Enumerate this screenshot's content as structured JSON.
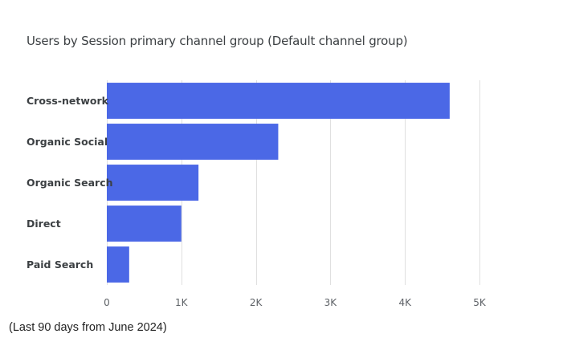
{
  "chart_data": {
    "type": "bar",
    "orientation": "horizontal",
    "title": "Users by Session primary channel group (Default channel group)",
    "categories": [
      "Cross-network",
      "Organic Social",
      "Organic Search",
      "Direct",
      "Paid Search"
    ],
    "values": [
      4600,
      2300,
      1230,
      1000,
      300
    ],
    "xlim": [
      0,
      5000
    ],
    "xticks": [
      {
        "value": 0,
        "label": "0"
      },
      {
        "value": 1000,
        "label": "1K"
      },
      {
        "value": 2000,
        "label": "2K"
      },
      {
        "value": 3000,
        "label": "3K"
      },
      {
        "value": 4000,
        "label": "4K"
      },
      {
        "value": 5000,
        "label": "5K"
      }
    ],
    "grid": true,
    "bar_color": "#4b68e6",
    "grid_color": "#e0e0e0"
  },
  "footnote": "(Last 90 days from June 2024)"
}
